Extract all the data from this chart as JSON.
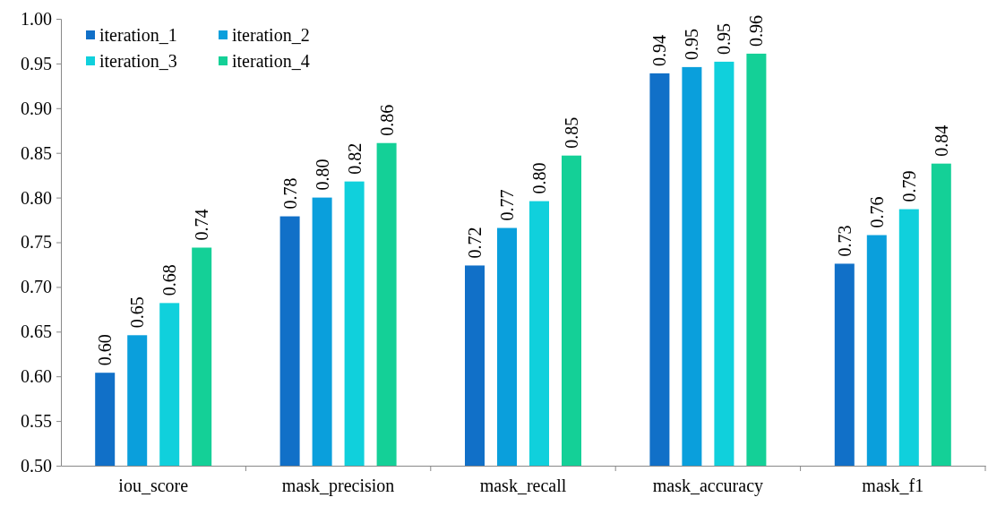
{
  "chart_data": {
    "type": "bar",
    "categories": [
      "iou_score",
      "mask_precision",
      "mask_recall",
      "mask_accuracy",
      "mask_f1"
    ],
    "series": [
      {
        "name": "iteration_1",
        "color": "#1170c8",
        "values": [
          0.604,
          0.779,
          0.724,
          0.939,
          0.726
        ],
        "value_labels": [
          "0.60",
          "0.78",
          "0.72",
          "0.94",
          "0.73"
        ]
      },
      {
        "name": "iteration_2",
        "color": "#0a9fdc",
        "values": [
          0.646,
          0.8,
          0.766,
          0.946,
          0.758
        ],
        "value_labels": [
          "0.65",
          "0.80",
          "0.77",
          "0.95",
          "0.76"
        ]
      },
      {
        "name": "iteration_3",
        "color": "#10d0dc",
        "values": [
          0.682,
          0.818,
          0.796,
          0.952,
          0.787
        ],
        "value_labels": [
          "0.68",
          "0.82",
          "0.80",
          "0.95",
          "0.79"
        ]
      },
      {
        "name": "iteration_4",
        "color": "#14d097",
        "values": [
          0.744,
          0.861,
          0.847,
          0.961,
          0.838
        ],
        "value_labels": [
          "0.74",
          "0.86",
          "0.85",
          "0.96",
          "0.84"
        ]
      }
    ],
    "ylim": [
      0.5,
      1.0
    ],
    "yticks": [
      "0.50",
      "0.55",
      "0.60",
      "0.65",
      "0.70",
      "0.75",
      "0.80",
      "0.85",
      "0.90",
      "0.95",
      "1.00"
    ],
    "grid": false,
    "legend": "top left"
  }
}
